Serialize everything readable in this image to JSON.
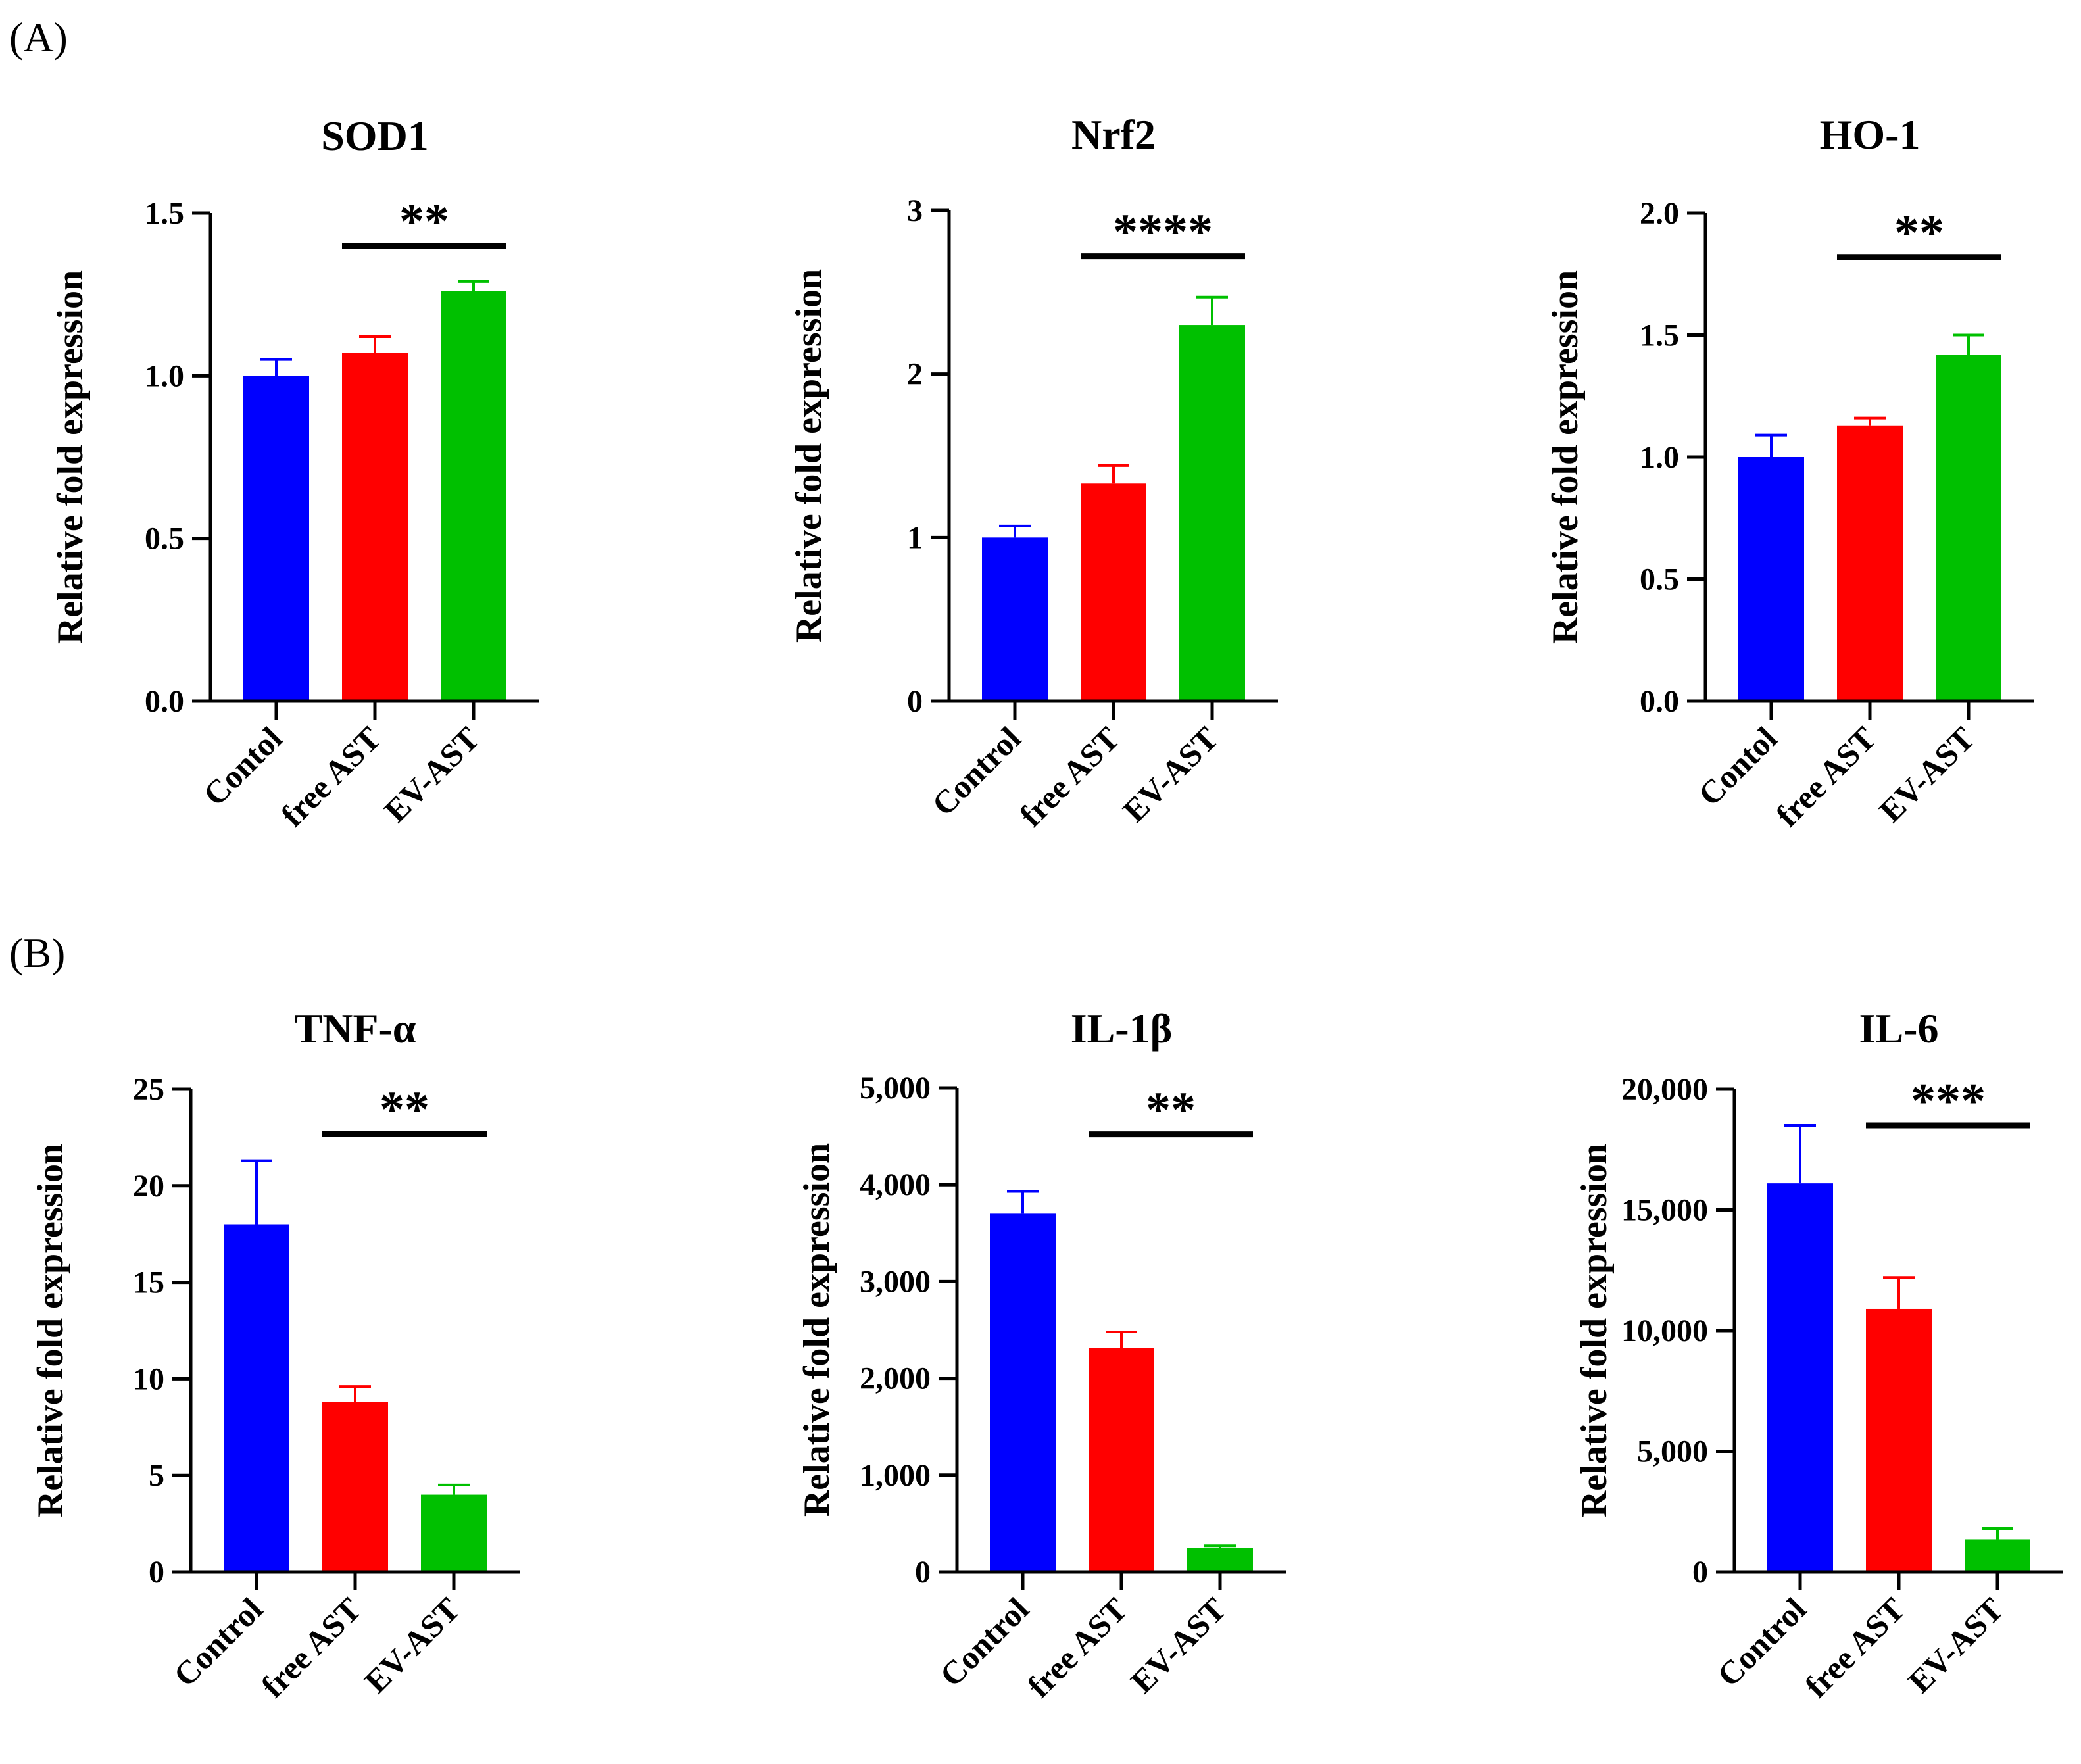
{
  "panels": [
    {
      "label": "(A)"
    },
    {
      "label": "(B)"
    }
  ],
  "chart_data": [
    {
      "type": "bar",
      "title": "SOD1",
      "ylabel": "Relative fold expression",
      "xlabel": "",
      "categories": [
        "Contol",
        "free AST",
        "EV-AST"
      ],
      "values": [
        1.0,
        1.07,
        1.26
      ],
      "errors": [
        0.05,
        0.05,
        0.03
      ],
      "colors": [
        "#0000ff",
        "#ff0000",
        "#00c000"
      ],
      "ylim": [
        0,
        1.5
      ],
      "yticks": [
        0,
        0.5,
        1.0,
        1.5
      ],
      "ytick_labels": [
        "0.0",
        "0.5",
        "1.0",
        "1.5"
      ],
      "significance": {
        "from": 1,
        "to": 2,
        "label": "**",
        "y": 1.4
      }
    },
    {
      "type": "bar",
      "title": "Nrf2",
      "ylabel": "Relative fold expression",
      "xlabel": "",
      "categories": [
        "Control",
        "free AST",
        "EV-AST"
      ],
      "values": [
        1.0,
        1.33,
        2.3
      ],
      "errors": [
        0.07,
        0.11,
        0.17
      ],
      "colors": [
        "#0000ff",
        "#ff0000",
        "#00c000"
      ],
      "ylim": [
        0,
        3
      ],
      "yticks": [
        0,
        1,
        2,
        3
      ],
      "ytick_labels": [
        "0",
        "1",
        "2",
        "3"
      ],
      "significance": {
        "from": 1,
        "to": 2,
        "label": "****",
        "y": 2.72
      }
    },
    {
      "type": "bar",
      "title": "HO-1",
      "ylabel": "Relative fold expression",
      "xlabel": "",
      "categories": [
        "Contol",
        "free AST",
        "EV-AST"
      ],
      "values": [
        1.0,
        1.13,
        1.42
      ],
      "errors": [
        0.09,
        0.03,
        0.08
      ],
      "colors": [
        "#0000ff",
        "#ff0000",
        "#00c000"
      ],
      "ylim": [
        0,
        2.0
      ],
      "yticks": [
        0,
        0.5,
        1.0,
        1.5,
        2.0
      ],
      "ytick_labels": [
        "0.0",
        "0.5",
        "1.0",
        "1.5",
        "2.0"
      ],
      "significance": {
        "from": 1,
        "to": 2,
        "label": "**",
        "y": 1.82
      }
    },
    {
      "type": "bar",
      "title": "TNF-α",
      "ylabel": "Relative fold expression",
      "xlabel": "",
      "categories": [
        "Control",
        "free AST",
        "EV-AST"
      ],
      "values": [
        18,
        8.8,
        4.0
      ],
      "errors": [
        3.3,
        0.8,
        0.5
      ],
      "colors": [
        "#0000ff",
        "#ff0000",
        "#00c000"
      ],
      "ylim": [
        0,
        25
      ],
      "yticks": [
        0,
        5,
        10,
        15,
        20,
        25
      ],
      "ytick_labels": [
        "0",
        "5",
        "10",
        "15",
        "20",
        "25"
      ],
      "significance": {
        "from": 1,
        "to": 2,
        "label": "**",
        "y": 22.7
      }
    },
    {
      "type": "bar",
      "title": "IL-1β",
      "ylabel": "Relative fold expression",
      "xlabel": "",
      "categories": [
        "Control",
        "free AST",
        "EV-AST"
      ],
      "values": [
        3700,
        2310,
        250
      ],
      "errors": [
        230,
        170,
        20
      ],
      "colors": [
        "#0000ff",
        "#ff0000",
        "#00c000"
      ],
      "ylim": [
        0,
        5000
      ],
      "yticks": [
        0,
        1000,
        2000,
        3000,
        4000,
        5000
      ],
      "ytick_labels": [
        "0",
        "1,000",
        "2,000",
        "3,000",
        "4,000",
        "5,000"
      ],
      "significance": {
        "from": 1,
        "to": 2,
        "label": "**",
        "y": 4520
      }
    },
    {
      "type": "bar",
      "title": "IL-6",
      "ylabel": "Relative fold expression",
      "xlabel": "",
      "categories": [
        "Control",
        "free AST",
        "EV-AST"
      ],
      "values": [
        16100,
        10900,
        1350
      ],
      "errors": [
        2400,
        1300,
        450
      ],
      "colors": [
        "#0000ff",
        "#ff0000",
        "#00c000"
      ],
      "ylim": [
        0,
        20000
      ],
      "yticks": [
        0,
        5000,
        10000,
        15000,
        20000
      ],
      "ytick_labels": [
        "0",
        "5,000",
        "10,000",
        "15,000",
        "20,000"
      ],
      "significance": {
        "from": 1,
        "to": 2,
        "label": "***",
        "y": 18500
      }
    }
  ]
}
